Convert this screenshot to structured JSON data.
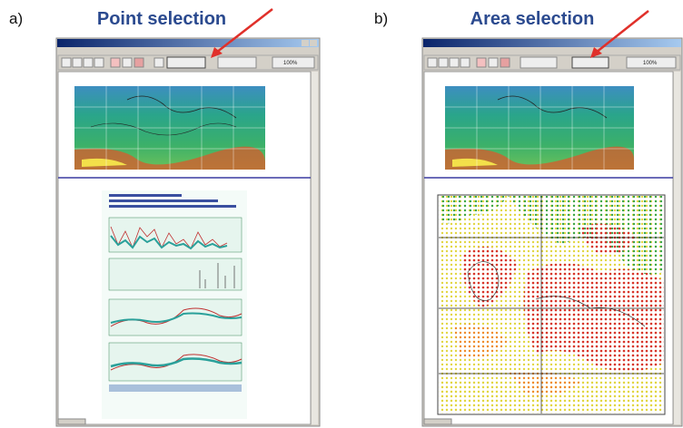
{
  "panels": [
    {
      "label": "a)",
      "title": "Point selection",
      "zoom": "100%"
    },
    {
      "label": "b)",
      "title": "Area selection",
      "zoom": "100%"
    }
  ]
}
